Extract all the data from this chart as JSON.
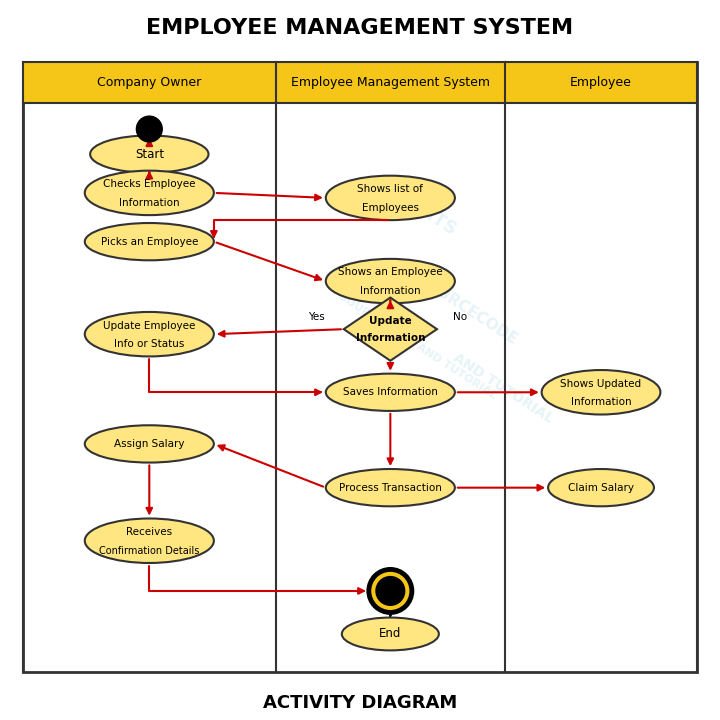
{
  "title": "EMPLOYEE MANAGEMENT SYSTEM",
  "subtitle": "ACTIVITY DIAGRAM",
  "header_bg": "#F5C518",
  "header_border": "#333333",
  "node_fill": "#FFE680",
  "node_border": "#333333",
  "arrow_color": "#CC0000",
  "lane_headers": [
    "Company Owner",
    "Employee Management System",
    "Employee"
  ],
  "bg_color": "#FFFFFF",
  "fig_bg": "#FFFFFF"
}
